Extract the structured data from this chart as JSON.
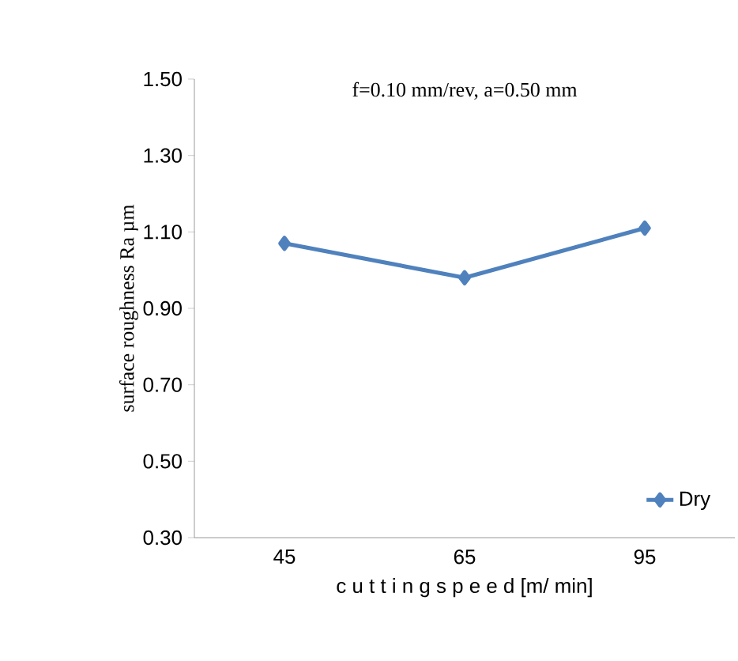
{
  "chart_data": {
    "type": "line",
    "title": "f=0.10 mm/rev, a=0.50 mm",
    "xlabel": "c u t t i n g  s p e e d  [m/ min]",
    "ylabel": "surface roughness Ra µm",
    "categories": [
      "45",
      "65",
      "95"
    ],
    "series": [
      {
        "name": "Dry",
        "color": "#4f81bd",
        "values": [
          1.07,
          0.98,
          1.11
        ]
      }
    ],
    "ylim": [
      0.3,
      1.5
    ],
    "yticks": [
      {
        "value": 0.3,
        "label": "0.30"
      },
      {
        "value": 0.5,
        "label": "0.50"
      },
      {
        "value": 0.7,
        "label": "0.70"
      },
      {
        "value": 0.9,
        "label": "0.90"
      },
      {
        "value": 1.1,
        "label": "1.10"
      },
      {
        "value": 1.3,
        "label": "1.30"
      },
      {
        "value": 1.5,
        "label": "1.50"
      }
    ],
    "grid": false,
    "legend": "bottom right",
    "marker": "diamond",
    "line_style": "solid"
  }
}
